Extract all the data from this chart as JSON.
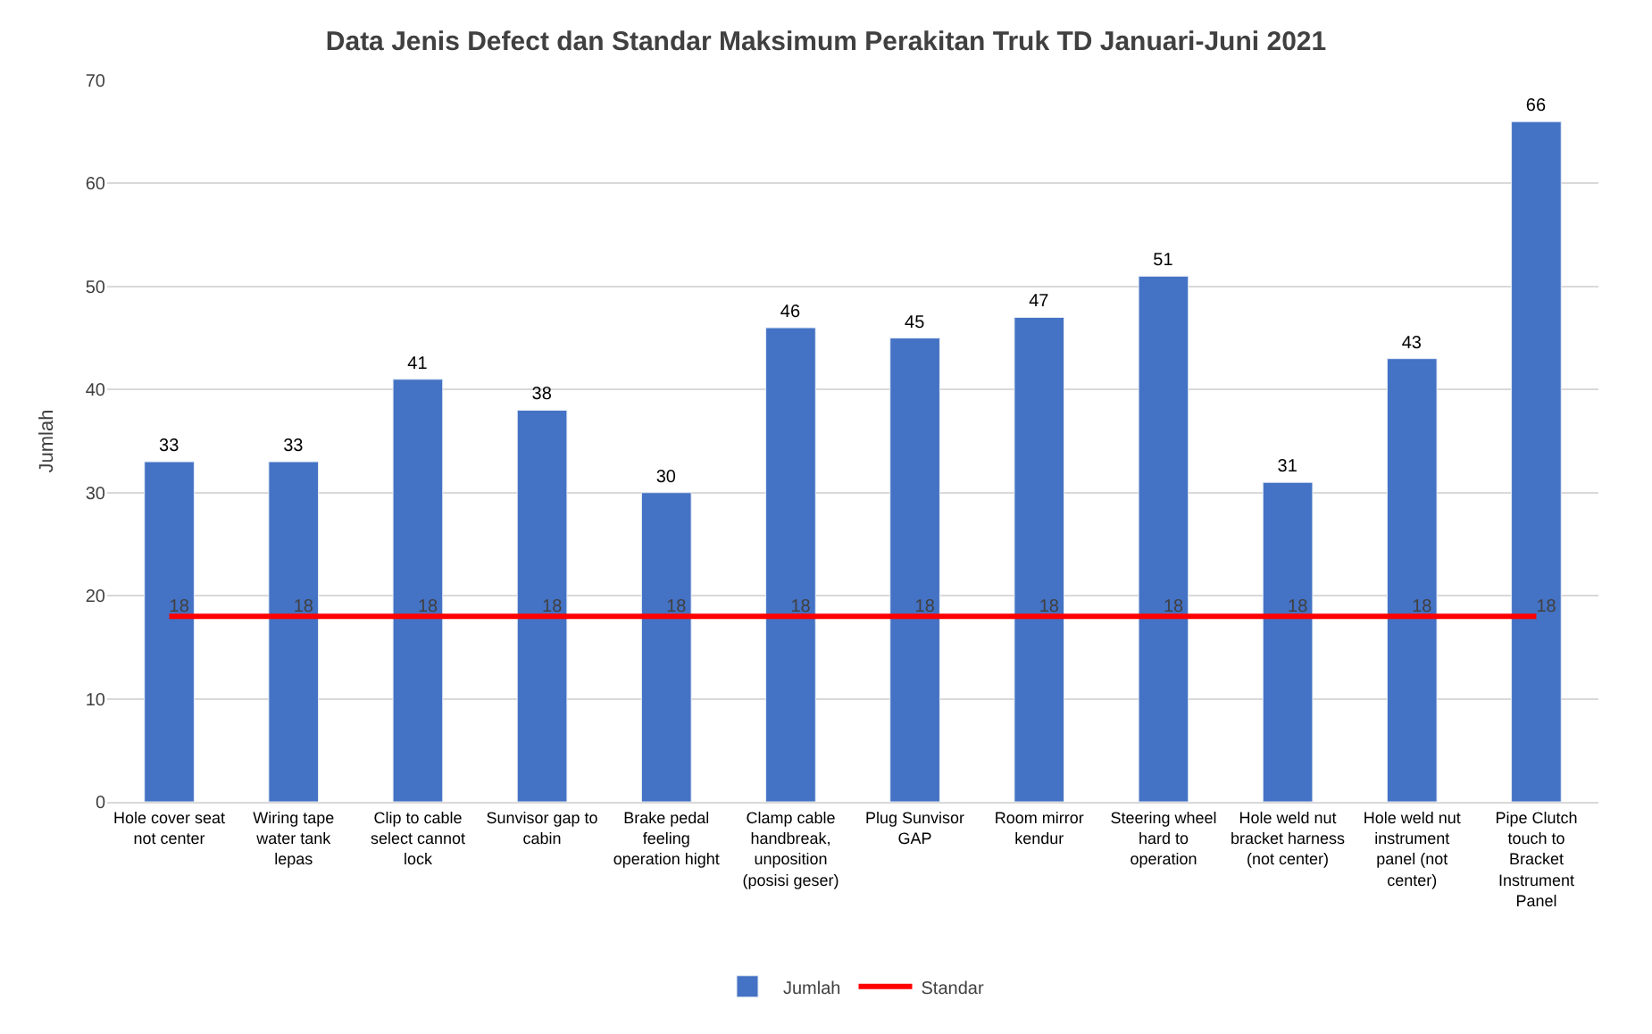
{
  "chart_data": {
    "type": "bar",
    "title": "Data Jenis Defect dan Standar Maksimum Perakitan Truk TD Januari-Juni 2021",
    "ylabel": "Jumlah",
    "categories": [
      "Hole cover seat not center",
      "Wiring tape water tank lepas",
      "Clip to cable select cannot lock",
      "Sunvisor gap to cabin",
      "Brake pedal feeling operation hight",
      "Clamp cable handbreak, unposition (posisi geser)",
      "Plug Sunvisor GAP",
      "Room mirror kendur",
      "Steering wheel hard to operation",
      "Hole weld nut bracket harness (not center)",
      "Hole weld nut instrument panel (not center)",
      "Pipe Clutch touch to Bracket Instrument Panel"
    ],
    "series": [
      {
        "name": "Jumlah",
        "color": "#4472c4",
        "values": [
          33,
          33,
          41,
          38,
          30,
          46,
          45,
          47,
          51,
          31,
          43,
          66
        ]
      },
      {
        "name": "Standar",
        "type": "line",
        "color": "#ff0000",
        "values": [
          18,
          18,
          18,
          18,
          18,
          18,
          18,
          18,
          18,
          18,
          18,
          18
        ]
      }
    ],
    "ylim": [
      0,
      70
    ],
    "yticks": [
      0,
      10,
      20,
      30,
      40,
      50,
      60,
      70
    ],
    "grid": "y",
    "legend": "bottom",
    "data_labels": true
  }
}
